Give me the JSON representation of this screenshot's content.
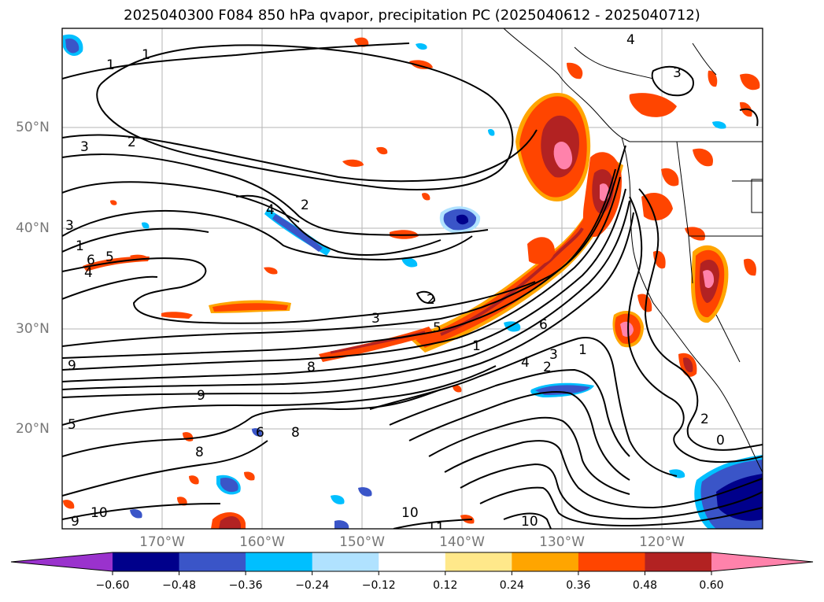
{
  "title": "2025040300 F084 850 hPa qvapor, precipitation PC (2025040612 - 2025040712)",
  "lat_labels": [
    "50°N",
    "40°N",
    "30°N",
    "20°N"
  ],
  "lon_labels": [
    "170°W",
    "160°W",
    "150°W",
    "140°W",
    "130°W",
    "120°W"
  ],
  "contour_labels": [
    "1",
    "1",
    "3",
    "2",
    "3",
    "1",
    "6",
    "5",
    "4",
    "2",
    "2",
    "4",
    "3",
    "5",
    "9",
    "8",
    "9",
    "5",
    "1",
    "6",
    "2",
    "4",
    "3",
    "1",
    "2",
    "0",
    "10",
    "11",
    "10",
    "10",
    "9",
    "8",
    "6",
    "8",
    "4",
    "3"
  ],
  "colorbar": {
    "ticks": [
      "−0.60",
      "−0.48",
      "−0.36",
      "−0.24",
      "−0.12",
      "0.12",
      "0.24",
      "0.36",
      "0.48",
      "0.60"
    ],
    "colors": [
      "#9a32cd",
      "#00008b",
      "#3a55c8",
      "#00bfff",
      "#b0e2ff",
      "#ffffff",
      "#ffe88a",
      "#ffa500",
      "#ff4500",
      "#b22222",
      "#ff82ab"
    ],
    "extend": "both"
  },
  "colors": {
    "pink": "#ff82ab",
    "darkred": "#b22222",
    "orangered": "#ff4500",
    "orange": "#ffa500",
    "yellow": "#ffe88a",
    "lightblue": "#b0e2ff",
    "skyblue": "#00bfff",
    "blue": "#3a55c8",
    "navy": "#00008b",
    "purple": "#9a32cd"
  }
}
